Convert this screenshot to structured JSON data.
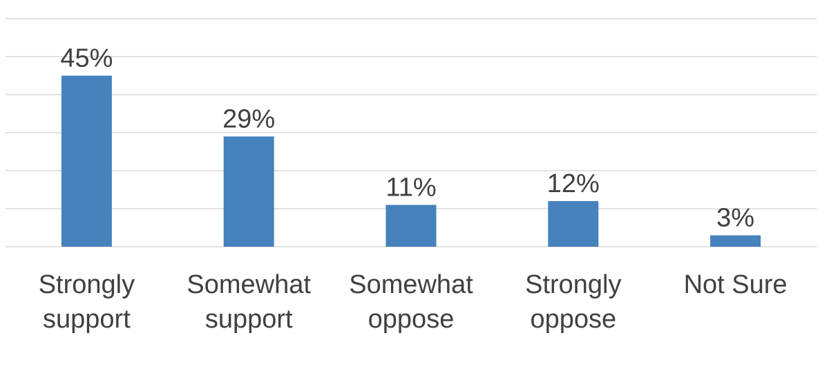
{
  "chart_data": {
    "type": "bar",
    "categories": [
      [
        "Strongly",
        "support"
      ],
      [
        "Somewhat",
        "support"
      ],
      [
        "Somewhat",
        "oppose"
      ],
      [
        "Strongly",
        "oppose"
      ],
      [
        "Not Sure"
      ]
    ],
    "values": [
      45,
      29,
      11,
      12,
      3
    ],
    "data_labels": [
      "45%",
      "29%",
      "11%",
      "12%",
      "3%"
    ],
    "title": "",
    "xlabel": "",
    "ylabel": "",
    "ylim": [
      0,
      60
    ],
    "grid": true,
    "bar_color": "#4682bc",
    "text_color": "#404040",
    "grid_color": "#d9d9d9"
  }
}
